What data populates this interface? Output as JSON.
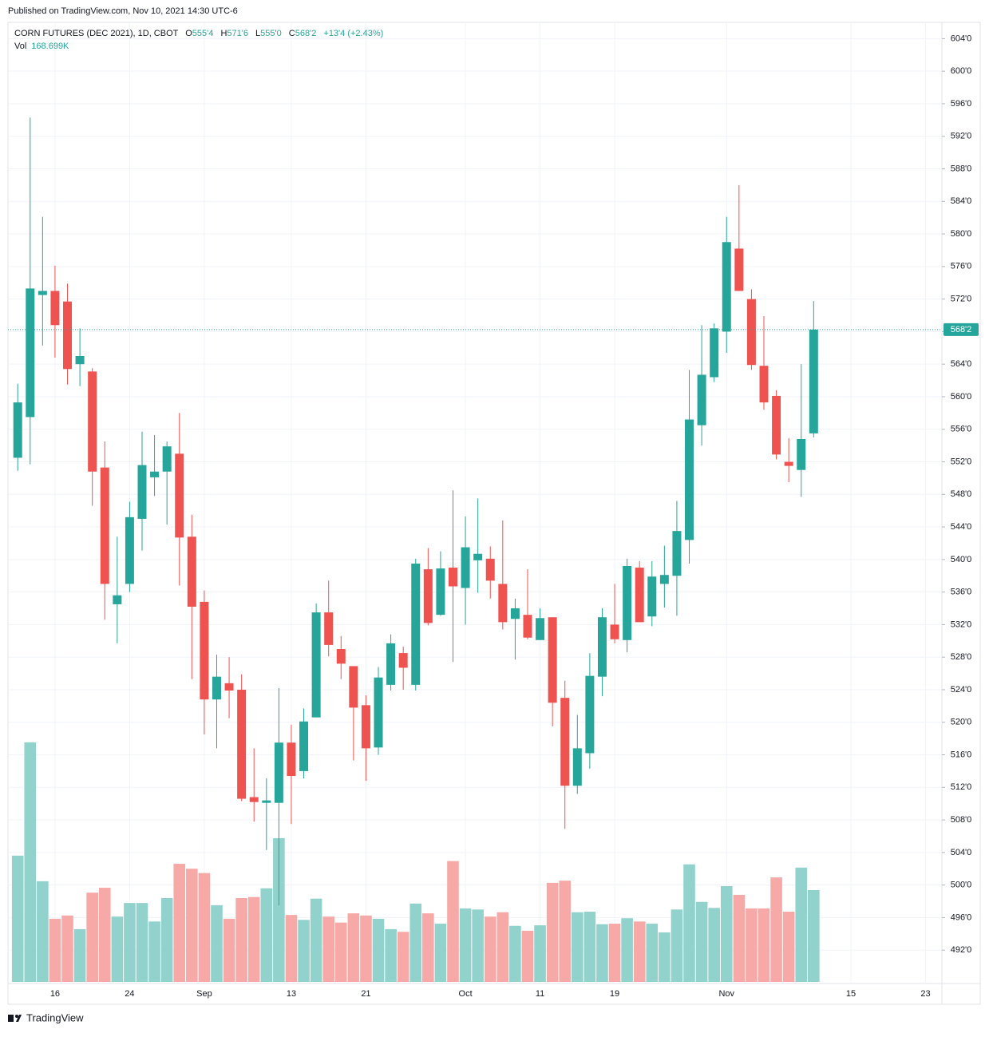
{
  "published": "Published on TradingView.com, Nov 10, 2021 14:30 UTC-6",
  "footer": "TradingView",
  "header": {
    "symbol": "CORN FUTURES (DEC 2021), 1D, CBOT",
    "o_label": "O",
    "o": "555'4",
    "h_label": "H",
    "h": "571'6",
    "l_label": "L",
    "l": "555'0",
    "c_label": "C",
    "c": "568'2",
    "change": "+13'4 (+2.43%)",
    "vol_label": "Vol",
    "vol": "168.699K"
  },
  "chart_data": {
    "type": "candlestick",
    "categories": [
      null,
      null,
      null,
      "16",
      null,
      null,
      null,
      null,
      null,
      "24",
      null,
      null,
      null,
      null,
      null,
      "Sep",
      null,
      null,
      null,
      null,
      null,
      null,
      "13",
      null,
      null,
      null,
      null,
      null,
      "21",
      null,
      null,
      null,
      null,
      null,
      null,
      null,
      "Oct",
      null,
      null,
      null,
      null,
      null,
      "11",
      null,
      null,
      null,
      null,
      null,
      "19",
      null,
      null,
      null,
      null,
      null,
      null,
      null,
      null,
      "Nov",
      null,
      null,
      null,
      null,
      null,
      null,
      null,
      null,
      null,
      "15",
      null,
      null,
      null,
      null,
      null,
      "23"
    ],
    "open": [
      552.5,
      557.5,
      572.5,
      573,
      571.7,
      564,
      563.1,
      551.3,
      534.5,
      537,
      545,
      550.1,
      550.8,
      553,
      542.8,
      534.8,
      522.8,
      524.8,
      524,
      510.8,
      510.1,
      510.1,
      517.5,
      514,
      520.6,
      533.5,
      529,
      526.9,
      522.1,
      516.9,
      524.6,
      528.5,
      524.6,
      538.8,
      533.2,
      539,
      536.5,
      539.9,
      540.1,
      537,
      532.7,
      533.2,
      530.1,
      532.9,
      523,
      512.2,
      516.2,
      525.6,
      532,
      530.1,
      539,
      533,
      537,
      538,
      542.4,
      556.5,
      562.4,
      568,
      578.2,
      572,
      563.8,
      560.1,
      552,
      551,
      555.5,
      null,
      null,
      null,
      null,
      null,
      null,
      null,
      null,
      null
    ],
    "high": [
      561.6,
      594.3,
      582.1,
      576.1,
      573.9,
      568.4,
      563.5,
      554.5,
      542.8,
      547.1,
      555.7,
      555.3,
      554.5,
      558,
      545.5,
      536.2,
      528.3,
      528,
      525.9,
      516.8,
      513.1,
      524.2,
      519.7,
      521.7,
      534.6,
      537.4,
      530.6,
      526.9,
      523.3,
      526.8,
      530.8,
      529.3,
      540.1,
      541.4,
      541,
      548.5,
      545.3,
      547.5,
      541.6,
      544.8,
      535.2,
      538.8,
      534,
      532.9,
      525.1,
      520.9,
      528.5,
      534,
      537,
      540.1,
      539.8,
      539.8,
      541.7,
      547.2,
      563.3,
      568.8,
      569,
      582.1,
      586,
      573.2,
      569.9,
      560.8,
      554.9,
      564,
      571.75,
      null,
      null,
      null,
      null,
      null,
      null,
      null,
      null,
      null
    ],
    "low": [
      550.9,
      551.7,
      566.3,
      564.8,
      561.5,
      561.3,
      546.6,
      532.6,
      529.7,
      536,
      541.1,
      547.8,
      544.3,
      536.8,
      525.3,
      518.5,
      516.8,
      520.5,
      510.3,
      507.8,
      504.3,
      497.5,
      507.5,
      513.1,
      520.6,
      528.1,
      525.3,
      515.3,
      512.8,
      516,
      523.9,
      524,
      523.9,
      531.9,
      533.1,
      527.4,
      532,
      535.9,
      535.2,
      531.4,
      527.7,
      530.2,
      530.1,
      519.5,
      506.9,
      511.2,
      514.3,
      523.2,
      529.7,
      528.6,
      532.3,
      531.8,
      534.1,
      533.1,
      539.5,
      554,
      561.8,
      565.4,
      573,
      563.3,
      558.4,
      552.3,
      549.5,
      547.7,
      555,
      null,
      null,
      null,
      null,
      null,
      null,
      null,
      null,
      null
    ],
    "close": [
      559.3,
      573.3,
      573,
      568.8,
      563.4,
      565,
      550.8,
      537,
      535.6,
      545.2,
      551.6,
      550.8,
      553.9,
      542.7,
      534.2,
      522.8,
      525.6,
      523.9,
      510.6,
      510.2,
      510.4,
      517.5,
      513.4,
      520.1,
      533.5,
      529.5,
      527.2,
      521.8,
      516.8,
      525.5,
      529.7,
      526.7,
      539.5,
      532.2,
      538.9,
      536.7,
      541.5,
      540.7,
      537.4,
      532.3,
      534,
      530.4,
      532.8,
      522.4,
      512.2,
      516.8,
      525.7,
      532.9,
      530.2,
      539.2,
      532.3,
      537.9,
      538.1,
      543.5,
      557.2,
      562.7,
      568.4,
      579,
      573,
      563.9,
      559.3,
      552.9,
      551.5,
      554.8,
      568.25,
      null,
      null,
      null,
      null,
      null,
      null,
      null,
      null,
      null
    ],
    "volume": [
      232,
      440,
      185,
      116,
      122,
      97,
      164,
      173,
      120,
      145,
      145,
      111,
      154,
      217,
      208,
      200,
      141,
      116,
      154,
      156,
      172,
      264,
      123,
      114,
      153,
      120,
      109,
      126,
      122,
      116,
      97,
      92,
      144,
      126,
      107,
      222,
      135,
      133,
      120,
      128,
      103,
      94,
      104,
      182,
      186,
      128,
      129,
      106,
      107,
      117,
      111,
      107,
      91,
      133,
      216,
      147,
      136,
      176,
      160,
      135,
      135,
      192,
      129,
      210,
      168.699,
      null,
      null,
      null,
      null,
      null,
      null,
      null,
      null,
      null
    ],
    "up_color": "#26a69a",
    "down_color": "#ef5350",
    "up_volume_color": "#92d2cc",
    "down_volume_color": "#f7a9a7",
    "last_price": {
      "value": 568.25,
      "label": "568'2"
    },
    "ylim": [
      487.9,
      606
    ],
    "yticks": [
      {
        "value": 604,
        "label": "604'0"
      },
      {
        "value": 600,
        "label": "600'0"
      },
      {
        "value": 596,
        "label": "596'0"
      },
      {
        "value": 592,
        "label": "592'0"
      },
      {
        "value": 588,
        "label": "588'0"
      },
      {
        "value": 584,
        "label": "584'0"
      },
      {
        "value": 580,
        "label": "580'0"
      },
      {
        "value": 576,
        "label": "576'0"
      },
      {
        "value": 572,
        "label": "572'0"
      },
      {
        "value": 568,
        "label": "568'0"
      },
      {
        "value": 564,
        "label": "564'0"
      },
      {
        "value": 560,
        "label": "560'0"
      },
      {
        "value": 556,
        "label": "556'0"
      },
      {
        "value": 552,
        "label": "552'0"
      },
      {
        "value": 548,
        "label": "548'0"
      },
      {
        "value": 544,
        "label": "544'0"
      },
      {
        "value": 540,
        "label": "540'0"
      },
      {
        "value": 536,
        "label": "536'0"
      },
      {
        "value": 532,
        "label": "532'0"
      },
      {
        "value": 528,
        "label": "528'0"
      },
      {
        "value": 524,
        "label": "524'0"
      },
      {
        "value": 520,
        "label": "520'0"
      },
      {
        "value": 516,
        "label": "516'0"
      },
      {
        "value": 512,
        "label": "512'0"
      },
      {
        "value": 508,
        "label": "508'0"
      },
      {
        "value": 504,
        "label": "504'0"
      },
      {
        "value": 500,
        "label": "500'0"
      },
      {
        "value": 496,
        "label": "496'0"
      },
      {
        "value": 492,
        "label": "492'0"
      }
    ],
    "grid": true
  }
}
